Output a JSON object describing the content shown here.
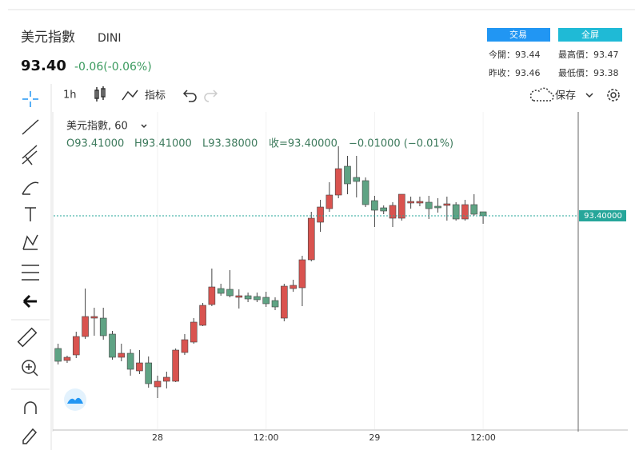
{
  "header": {
    "title": "美元指數",
    "symbol": "DINI",
    "price": "93.40",
    "change": "-0.06(-0.06%)",
    "buttons": [
      "交易",
      "全屏"
    ],
    "stats": [
      "今開：93.44",
      "最高價：93.47",
      "昨收：93.46",
      "最低價：93.38"
    ]
  },
  "toolbar": {
    "interval": "1h",
    "indicators": "指标",
    "save": "保存"
  },
  "chart_data": {
    "type": "candlestick",
    "legend": {
      "title": "美元指數, 60",
      "open": "O93.41000",
      "high": "H93.41000",
      "low": "L93.38000",
      "close": "收=93.40000",
      "change": "−0.01000 (−0.01%)"
    },
    "open": [
      93.068,
      93.038,
      93.052,
      93.098,
      93.144,
      93.144,
      93.104,
      93.046,
      93.056,
      93.012,
      93.032,
      92.972,
      92.986,
      92.986,
      93.058,
      93.084,
      93.126,
      93.178,
      93.218,
      93.216,
      93.196,
      93.2,
      93.198,
      93.196,
      93.188,
      93.144,
      93.218,
      93.22,
      93.29,
      93.384,
      93.418,
      93.452,
      93.524,
      93.496,
      93.488,
      93.438,
      93.42,
      93.394,
      93.394,
      93.432,
      93.432,
      93.434,
      93.424,
      93.426,
      93.428,
      93.392,
      93.428,
      93.41
    ],
    "high": [
      93.08,
      93.05,
      93.11,
      93.218,
      93.17,
      93.17,
      93.112,
      93.08,
      93.066,
      93.064,
      93.048,
      93.0,
      93.01,
      93.068,
      93.104,
      93.144,
      93.182,
      93.268,
      93.23,
      93.264,
      93.216,
      93.208,
      93.208,
      93.21,
      93.196,
      93.23,
      93.24,
      93.3,
      93.41,
      93.44,
      93.484,
      93.574,
      93.55,
      93.55,
      93.496,
      93.45,
      93.426,
      93.434,
      93.454,
      93.448,
      93.448,
      93.45,
      93.444,
      93.448,
      93.434,
      93.44,
      93.454,
      93.41
    ],
    "low": [
      93.028,
      93.032,
      93.044,
      93.092,
      93.1,
      93.09,
      93.04,
      93.036,
      93.0,
      93.004,
      92.97,
      92.944,
      92.968,
      92.984,
      93.052,
      93.08,
      93.124,
      93.174,
      93.2,
      93.196,
      93.168,
      93.184,
      93.184,
      93.172,
      93.164,
      93.136,
      93.21,
      93.174,
      93.286,
      93.36,
      93.41,
      93.444,
      93.454,
      93.446,
      93.422,
      93.372,
      93.404,
      93.372,
      93.388,
      93.418,
      93.424,
      93.392,
      93.408,
      93.388,
      93.388,
      93.388,
      93.4,
      93.38
    ],
    "close": [
      93.036,
      93.046,
      93.098,
      93.148,
      93.148,
      93.1,
      93.046,
      93.056,
      93.016,
      93.032,
      92.98,
      92.986,
      92.996,
      93.064,
      93.09,
      93.134,
      93.176,
      93.222,
      93.206,
      93.2,
      93.2,
      93.192,
      93.19,
      93.18,
      93.172,
      93.224,
      93.226,
      93.29,
      93.394,
      93.422,
      93.452,
      93.518,
      93.48,
      93.486,
      93.428,
      93.414,
      93.412,
      93.426,
      93.454,
      93.436,
      93.436,
      93.418,
      93.42,
      93.43,
      93.392,
      93.428,
      93.404,
      93.4
    ],
    "up_color": "#d9534f",
    "down_color": "#5fa384",
    "last_price": {
      "value": 93.4,
      "label": "93.40000"
    },
    "last_price_color": "#26a69a",
    "xlim": [
      -0.5,
      63
    ],
    "ylim": [
      92.86,
      93.66
    ],
    "xticks": [
      {
        "value": 11,
        "label": "28"
      },
      {
        "value": 23,
        "label": "12:00"
      },
      {
        "value": 35,
        "label": "29"
      },
      {
        "value": 47,
        "label": "12:00"
      }
    ],
    "grid": true
  }
}
